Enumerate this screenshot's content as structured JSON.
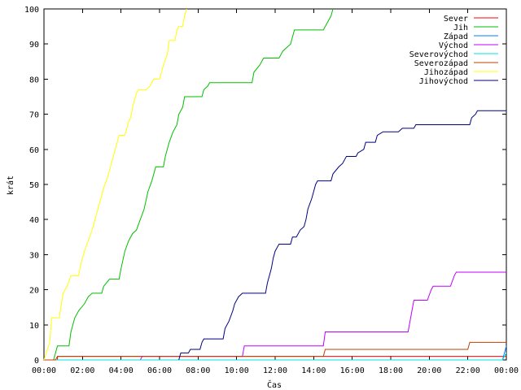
{
  "chart_data": {
    "type": "line",
    "xlabel": "Čas",
    "ylabel": "krát",
    "xlim": [
      0,
      24
    ],
    "ylim": [
      0,
      100
    ],
    "x_ticks": [
      {
        "value": 0,
        "label": "00:00"
      },
      {
        "value": 2,
        "label": "02:00"
      },
      {
        "value": 4,
        "label": "04:00"
      },
      {
        "value": 6,
        "label": "06:00"
      },
      {
        "value": 8,
        "label": "08:00"
      },
      {
        "value": 10,
        "label": "10:00"
      },
      {
        "value": 12,
        "label": "12:00"
      },
      {
        "value": 14,
        "label": "14:00"
      },
      {
        "value": 16,
        "label": "16:00"
      },
      {
        "value": 18,
        "label": "18:00"
      },
      {
        "value": 20,
        "label": "20:00"
      },
      {
        "value": 22,
        "label": "22:00"
      },
      {
        "value": 24,
        "label": "00:00"
      }
    ],
    "y_ticks": [
      0,
      10,
      20,
      30,
      40,
      50,
      60,
      70,
      80,
      90,
      100
    ],
    "grid": false,
    "legend_position": "top-right",
    "series": [
      {
        "name": "Sever",
        "color": "#ff0000",
        "points": [
          [
            0,
            0
          ],
          [
            0.7,
            0
          ],
          [
            0.7,
            1
          ],
          [
            24,
            1
          ]
        ]
      },
      {
        "name": "Jih",
        "color": "#00c000",
        "points": [
          [
            0.5,
            0
          ],
          [
            0.6,
            2
          ],
          [
            0.7,
            4
          ],
          [
            1.3,
            4
          ],
          [
            1.4,
            8
          ],
          [
            1.6,
            12
          ],
          [
            1.8,
            14
          ],
          [
            2.1,
            16
          ],
          [
            2.3,
            18
          ],
          [
            2.5,
            19
          ],
          [
            3.0,
            19
          ],
          [
            3.1,
            21
          ],
          [
            3.4,
            23
          ],
          [
            3.9,
            23
          ],
          [
            4.0,
            26
          ],
          [
            4.2,
            31
          ],
          [
            4.4,
            34
          ],
          [
            4.6,
            36
          ],
          [
            4.8,
            37
          ],
          [
            5.0,
            40
          ],
          [
            5.2,
            43
          ],
          [
            5.4,
            48
          ],
          [
            5.6,
            51
          ],
          [
            5.8,
            55
          ],
          [
            6.2,
            55
          ],
          [
            6.3,
            58
          ],
          [
            6.5,
            62
          ],
          [
            6.7,
            65
          ],
          [
            6.9,
            67
          ],
          [
            7.0,
            70
          ],
          [
            7.2,
            72
          ],
          [
            7.3,
            75
          ],
          [
            8.2,
            75
          ],
          [
            8.3,
            77
          ],
          [
            8.5,
            78
          ],
          [
            8.6,
            79
          ],
          [
            10.8,
            79
          ],
          [
            10.9,
            82
          ],
          [
            11.2,
            84
          ],
          [
            11.4,
            86
          ],
          [
            12.2,
            86
          ],
          [
            12.4,
            88
          ],
          [
            12.8,
            90
          ],
          [
            13.0,
            94
          ],
          [
            14.5,
            94
          ],
          [
            14.7,
            96
          ],
          [
            14.9,
            98
          ],
          [
            15.0,
            100
          ]
        ]
      },
      {
        "name": "Západ",
        "color": "#0080ff",
        "points": [
          [
            0,
            0
          ],
          [
            23.8,
            0
          ],
          [
            23.9,
            2
          ],
          [
            24,
            4
          ]
        ]
      },
      {
        "name": "Východ",
        "color": "#c000ff",
        "points": [
          [
            5.0,
            0
          ],
          [
            5.1,
            1
          ],
          [
            10.3,
            1
          ],
          [
            10.4,
            4
          ],
          [
            14.5,
            4
          ],
          [
            14.6,
            8
          ],
          [
            18.9,
            8
          ],
          [
            19.1,
            14
          ],
          [
            19.2,
            17
          ],
          [
            19.9,
            17
          ],
          [
            20.1,
            20
          ],
          [
            20.2,
            21
          ],
          [
            21.1,
            21
          ],
          [
            21.3,
            24
          ],
          [
            21.4,
            25
          ],
          [
            24,
            25
          ]
        ]
      },
      {
        "name": "Severovýchod",
        "color": "#00e0e0",
        "points": [
          [
            0,
            0
          ],
          [
            23.8,
            0
          ],
          [
            23.9,
            1
          ],
          [
            24,
            2
          ]
        ]
      },
      {
        "name": "Severozápad",
        "color": "#c04000",
        "points": [
          [
            0,
            0
          ],
          [
            0.6,
            0
          ],
          [
            0.7,
            1
          ],
          [
            14.5,
            1
          ],
          [
            14.6,
            3
          ],
          [
            22.0,
            3
          ],
          [
            22.1,
            5
          ],
          [
            24,
            5
          ]
        ]
      },
      {
        "name": "Jihozápad",
        "color": "#ffff00",
        "points": [
          [
            0,
            0
          ],
          [
            0.3,
            5
          ],
          [
            0.4,
            12
          ],
          [
            0.8,
            12
          ],
          [
            0.9,
            16
          ],
          [
            1.0,
            19
          ],
          [
            1.2,
            21
          ],
          [
            1.4,
            24
          ],
          [
            1.8,
            24
          ],
          [
            1.9,
            27
          ],
          [
            2.1,
            31
          ],
          [
            2.3,
            34
          ],
          [
            2.5,
            37
          ],
          [
            2.7,
            41
          ],
          [
            2.9,
            45
          ],
          [
            3.1,
            49
          ],
          [
            3.3,
            52
          ],
          [
            3.5,
            56
          ],
          [
            3.7,
            60
          ],
          [
            3.9,
            64
          ],
          [
            4.2,
            64
          ],
          [
            4.4,
            68
          ],
          [
            4.5,
            69
          ],
          [
            4.6,
            72
          ],
          [
            4.8,
            76
          ],
          [
            4.9,
            77
          ],
          [
            5.3,
            77
          ],
          [
            5.5,
            78
          ],
          [
            5.6,
            79
          ],
          [
            5.7,
            80
          ],
          [
            6.0,
            80
          ],
          [
            6.2,
            84
          ],
          [
            6.4,
            87
          ],
          [
            6.5,
            91
          ],
          [
            6.8,
            91
          ],
          [
            6.9,
            94
          ],
          [
            7.0,
            95
          ],
          [
            7.2,
            95
          ],
          [
            7.3,
            98
          ],
          [
            7.4,
            100
          ]
        ]
      },
      {
        "name": "Jihovýchod",
        "color": "#000080",
        "points": [
          [
            7.0,
            0
          ],
          [
            7.1,
            2
          ],
          [
            7.5,
            2
          ],
          [
            7.6,
            3
          ],
          [
            8.1,
            3
          ],
          [
            8.2,
            5
          ],
          [
            8.3,
            6
          ],
          [
            9.3,
            6
          ],
          [
            9.4,
            9
          ],
          [
            9.6,
            11
          ],
          [
            9.8,
            14
          ],
          [
            9.9,
            16
          ],
          [
            10.1,
            18
          ],
          [
            10.3,
            19
          ],
          [
            11.5,
            19
          ],
          [
            11.6,
            22
          ],
          [
            11.8,
            26
          ],
          [
            11.9,
            29
          ],
          [
            12.0,
            31
          ],
          [
            12.2,
            33
          ],
          [
            12.8,
            33
          ],
          [
            12.9,
            35
          ],
          [
            13.1,
            35
          ],
          [
            13.3,
            37
          ],
          [
            13.5,
            38
          ],
          [
            13.6,
            40
          ],
          [
            13.7,
            43
          ],
          [
            13.9,
            46
          ],
          [
            14.0,
            48
          ],
          [
            14.1,
            50
          ],
          [
            14.2,
            51
          ],
          [
            14.9,
            51
          ],
          [
            15.0,
            53
          ],
          [
            15.3,
            55
          ],
          [
            15.5,
            56
          ],
          [
            15.7,
            58
          ],
          [
            16.2,
            58
          ],
          [
            16.3,
            59
          ],
          [
            16.6,
            60
          ],
          [
            16.7,
            62
          ],
          [
            17.2,
            62
          ],
          [
            17.3,
            64
          ],
          [
            17.6,
            65
          ],
          [
            18.4,
            65
          ],
          [
            18.6,
            66
          ],
          [
            19.2,
            66
          ],
          [
            19.3,
            67
          ],
          [
            22.1,
            67
          ],
          [
            22.2,
            69
          ],
          [
            22.4,
            70
          ],
          [
            22.5,
            71
          ],
          [
            24,
            71
          ]
        ]
      }
    ]
  }
}
